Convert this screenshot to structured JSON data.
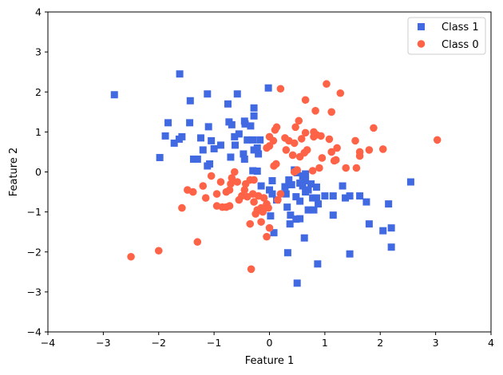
{
  "chart_data": {
    "type": "scatter",
    "title": "",
    "xlabel": "Feature 1",
    "ylabel": "Feature 2",
    "xlim": [
      -4,
      4
    ],
    "ylim": [
      -4,
      4
    ],
    "xticks": [
      -4,
      -3,
      -2,
      -1,
      0,
      1,
      2,
      3,
      4
    ],
    "yticks": [
      -4,
      -3,
      -2,
      -1,
      0,
      1,
      2,
      3,
      4
    ],
    "grid": false,
    "legend": "top-right",
    "series": [
      {
        "name": "Class 1",
        "marker": "square",
        "color": "#4169E1",
        "points": [
          [
            -2.8,
            1.93
          ],
          [
            -1.62,
            2.45
          ],
          [
            -0.02,
            2.1
          ],
          [
            -1.12,
            1.95
          ],
          [
            -0.58,
            1.95
          ],
          [
            -0.75,
            1.7
          ],
          [
            -0.28,
            1.6
          ],
          [
            -1.43,
            1.78
          ],
          [
            -0.28,
            1.4
          ],
          [
            -1.83,
            1.23
          ],
          [
            -1.44,
            1.23
          ],
          [
            -0.73,
            1.25
          ],
          [
            -0.68,
            1.18
          ],
          [
            -0.45,
            1.27
          ],
          [
            -0.44,
            1.2
          ],
          [
            -0.34,
            1.15
          ],
          [
            -1.1,
            1.13
          ],
          [
            -1.88,
            0.9
          ],
          [
            -1.63,
            0.82
          ],
          [
            -1.72,
            0.72
          ],
          [
            -1.58,
            0.88
          ],
          [
            -1.24,
            0.85
          ],
          [
            -0.63,
            0.88
          ],
          [
            -0.55,
            0.95
          ],
          [
            -1.05,
            0.78
          ],
          [
            -0.88,
            0.67
          ],
          [
            -1.0,
            0.58
          ],
          [
            -0.62,
            0.67
          ],
          [
            -0.4,
            0.8
          ],
          [
            -0.3,
            0.8
          ],
          [
            -0.17,
            0.8
          ],
          [
            -1.2,
            0.55
          ],
          [
            -0.28,
            0.55
          ],
          [
            -0.22,
            0.6
          ],
          [
            -0.47,
            0.45
          ],
          [
            -1.98,
            0.36
          ],
          [
            -1.37,
            0.32
          ],
          [
            -1.3,
            0.32
          ],
          [
            -0.7,
            0.37
          ],
          [
            -0.45,
            0.32
          ],
          [
            -1.08,
            0.2
          ],
          [
            -1.12,
            0.15
          ],
          [
            -0.2,
            0.45
          ],
          [
            -0.3,
            0.03
          ],
          [
            -0.22,
            0.02
          ],
          [
            -0.15,
            -0.35
          ],
          [
            0.05,
            -0.22
          ],
          [
            0.35,
            -0.2
          ],
          [
            0.4,
            -0.32
          ],
          [
            0.28,
            -0.37
          ],
          [
            0.45,
            0.05
          ],
          [
            0.5,
            -0.02
          ],
          [
            0.6,
            -0.1
          ],
          [
            0.65,
            -0.05
          ],
          [
            0.65,
            -0.22
          ],
          [
            0.55,
            -0.28
          ],
          [
            0.75,
            -0.3
          ],
          [
            0.85,
            -0.38
          ],
          [
            0.6,
            -0.35
          ],
          [
            0.7,
            -0.45
          ],
          [
            0.0,
            -0.45
          ],
          [
            0.05,
            -0.55
          ],
          [
            0.13,
            -0.7
          ],
          [
            0.3,
            -0.55
          ],
          [
            0.32,
            -0.88
          ],
          [
            0.48,
            -0.62
          ],
          [
            0.55,
            -0.73
          ],
          [
            0.65,
            -0.5
          ],
          [
            0.78,
            -0.65
          ],
          [
            0.85,
            -0.65
          ],
          [
            0.88,
            -0.8
          ],
          [
            1.0,
            -0.6
          ],
          [
            1.15,
            -0.6
          ],
          [
            1.32,
            -0.35
          ],
          [
            1.37,
            -0.65
          ],
          [
            1.45,
            -0.6
          ],
          [
            1.63,
            -0.6
          ],
          [
            1.75,
            -0.75
          ],
          [
            2.15,
            -0.8
          ],
          [
            2.55,
            -0.25
          ],
          [
            0.8,
            -0.95
          ],
          [
            0.7,
            -0.95
          ],
          [
            0.38,
            -1.08
          ],
          [
            0.48,
            -1.18
          ],
          [
            0.55,
            -1.17
          ],
          [
            0.02,
            -1.1
          ],
          [
            1.15,
            -1.08
          ],
          [
            0.63,
            -1.65
          ],
          [
            0.08,
            -1.52
          ],
          [
            0.37,
            -1.3
          ],
          [
            1.8,
            -1.3
          ],
          [
            2.05,
            -1.47
          ],
          [
            2.2,
            -1.4
          ],
          [
            2.2,
            -1.88
          ],
          [
            0.33,
            -2.02
          ],
          [
            0.87,
            -2.3
          ],
          [
            1.45,
            -2.05
          ],
          [
            0.5,
            -2.78
          ]
        ]
      },
      {
        "name": "Class 0",
        "marker": "circle",
        "color": "#FF6347",
        "points": [
          [
            0.2,
            2.08
          ],
          [
            1.03,
            2.2
          ],
          [
            1.28,
            1.97
          ],
          [
            0.65,
            1.8
          ],
          [
            1.12,
            1.5
          ],
          [
            0.83,
            1.53
          ],
          [
            0.47,
            1.12
          ],
          [
            0.53,
            1.28
          ],
          [
            0.8,
            0.88
          ],
          [
            0.93,
            0.9
          ],
          [
            1.88,
            1.1
          ],
          [
            0.13,
            1.12
          ],
          [
            0.1,
            1.05
          ],
          [
            0.28,
            0.85
          ],
          [
            0.0,
            0.88
          ],
          [
            0.07,
            0.78
          ],
          [
            0.35,
            0.78
          ],
          [
            0.45,
            0.72
          ],
          [
            0.58,
            0.83
          ],
          [
            0.8,
            1.0
          ],
          [
            0.85,
            0.93
          ],
          [
            1.08,
            0.82
          ],
          [
            1.55,
            0.78
          ],
          [
            1.22,
            0.6
          ],
          [
            1.12,
            0.5
          ],
          [
            0.95,
            0.35
          ],
          [
            0.65,
            0.98
          ],
          [
            0.68,
            0.55
          ],
          [
            0.42,
            0.42
          ],
          [
            0.55,
            0.38
          ],
          [
            0.63,
            0.48
          ],
          [
            1.63,
            0.5
          ],
          [
            1.63,
            0.4
          ],
          [
            1.8,
            0.55
          ],
          [
            2.05,
            0.57
          ],
          [
            3.03,
            0.8
          ],
          [
            1.38,
            0.1
          ],
          [
            1.57,
            0.1
          ],
          [
            1.17,
            0.28
          ],
          [
            1.2,
            0.3
          ],
          [
            0.9,
            0.1
          ],
          [
            0.78,
            0.03
          ],
          [
            0.5,
            0.05
          ],
          [
            0.45,
            0.0
          ],
          [
            0.12,
            0.2
          ],
          [
            0.08,
            0.15
          ],
          [
            0.3,
            0.55
          ],
          [
            -0.05,
            0.6
          ],
          [
            0.0,
            0.65
          ],
          [
            -0.28,
            -0.2
          ],
          [
            -0.35,
            -0.2
          ],
          [
            -0.58,
            -0.25
          ],
          [
            -0.7,
            -0.3
          ],
          [
            -0.72,
            -0.45
          ],
          [
            -0.43,
            -0.3
          ],
          [
            -0.63,
            0.0
          ],
          [
            -0.68,
            -0.15
          ],
          [
            -0.88,
            -0.25
          ],
          [
            -1.05,
            -0.1
          ],
          [
            -1.2,
            -0.35
          ],
          [
            -1.38,
            -0.5
          ],
          [
            -1.48,
            -0.45
          ],
          [
            -0.95,
            -0.55
          ],
          [
            -0.78,
            -0.5
          ],
          [
            -0.5,
            -0.6
          ],
          [
            -0.4,
            -0.62
          ],
          [
            -0.3,
            -0.55
          ],
          [
            -0.28,
            -0.75
          ],
          [
            -0.2,
            -0.6
          ],
          [
            -0.1,
            -0.65
          ],
          [
            -0.05,
            -0.8
          ],
          [
            -0.15,
            -0.9
          ],
          [
            -0.02,
            -0.9
          ],
          [
            -0.12,
            -1.0
          ],
          [
            -0.22,
            -0.95
          ],
          [
            -0.85,
            -0.88
          ],
          [
            -0.95,
            -0.85
          ],
          [
            -0.78,
            -0.88
          ],
          [
            -0.72,
            -0.85
          ],
          [
            -1.58,
            -0.9
          ],
          [
            -1.15,
            -0.65
          ],
          [
            -0.55,
            -0.7
          ],
          [
            -0.25,
            -1.05
          ],
          [
            -0.35,
            -1.3
          ],
          [
            -0.15,
            -1.25
          ],
          [
            0.0,
            -1.4
          ],
          [
            -0.05,
            -1.62
          ],
          [
            -1.3,
            -1.75
          ],
          [
            -2.0,
            -1.97
          ],
          [
            -2.5,
            -2.12
          ],
          [
            -0.33,
            -2.43
          ],
          [
            0.15,
            -0.7
          ],
          [
            -0.45,
            -0.45
          ],
          [
            0.2,
            -0.55
          ]
        ]
      }
    ]
  }
}
